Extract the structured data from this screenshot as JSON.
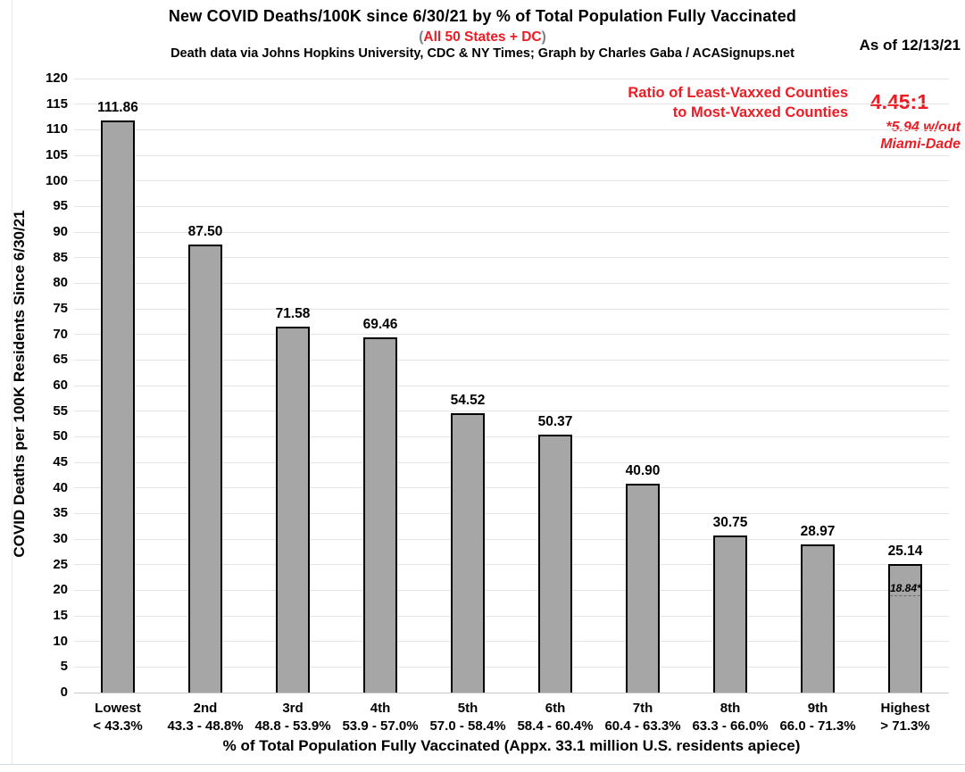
{
  "header": {
    "title": "New COVID Deaths/100K since 6/30/21 by % of Total Population Fully Vaccinated",
    "subtitle": {
      "open": "(",
      "text": "All 50 States + DC",
      "close": ")"
    },
    "source": "Death data via Johns Hopkins University, CDC & NY Times; Graph by Charles Gaba / ACASignups.net",
    "as_of": "As of 12/13/21"
  },
  "annotation": {
    "label_line1": "Ratio of Least-Vaxxed Counties",
    "label_line2": "to Most-Vaxxed Counties",
    "value": "4.45:1",
    "note_line1": "*5.94 w/out",
    "note_line2": "Miami-Dade"
  },
  "colors": {
    "accent_red": "#ED1C24",
    "paren_gray": "#808080",
    "bar_fill": "#A6A6A6",
    "bar_border": "#000000",
    "gridline": "#E4E4E4",
    "baseline": "#C9C9C9"
  },
  "chart_data": {
    "type": "bar",
    "title": "New COVID Deaths/100K since 6/30/21 by % of Total Population Fully Vaccinated",
    "xlabel": "% of Total Population Fully Vaccinated (Appx. 33.1 million U.S. residents apiece)",
    "ylabel": "COVID Deaths per 100K Residents Since 6/30/21",
    "ylim": [
      0,
      120
    ],
    "ytick_step": 5,
    "grid": true,
    "legend": false,
    "categories": [
      "Lowest",
      "2nd",
      "3rd",
      "4th",
      "5th",
      "6th",
      "7th",
      "8th",
      "9th",
      "Highest"
    ],
    "category_ranges": [
      "< 43.3%",
      "43.3 - 48.8%",
      "48.8 - 53.9%",
      "53.9 - 57.0%",
      "57.0 - 58.4%",
      "58.4 - 60.4%",
      "60.4 - 63.3%",
      "63.3 - 66.0%",
      "66.0 - 71.3%",
      "> 71.3%"
    ],
    "values": [
      111.86,
      87.5,
      71.58,
      69.46,
      54.52,
      50.37,
      40.9,
      30.75,
      28.97,
      25.14
    ],
    "value_labels": [
      "111.86",
      "87.50",
      "71.58",
      "69.46",
      "54.52",
      "50.37",
      "40.90",
      "30.75",
      "28.97",
      "25.14"
    ],
    "inner_marker": {
      "category_index": 9,
      "value": 18.84,
      "label": "18.84*"
    }
  }
}
